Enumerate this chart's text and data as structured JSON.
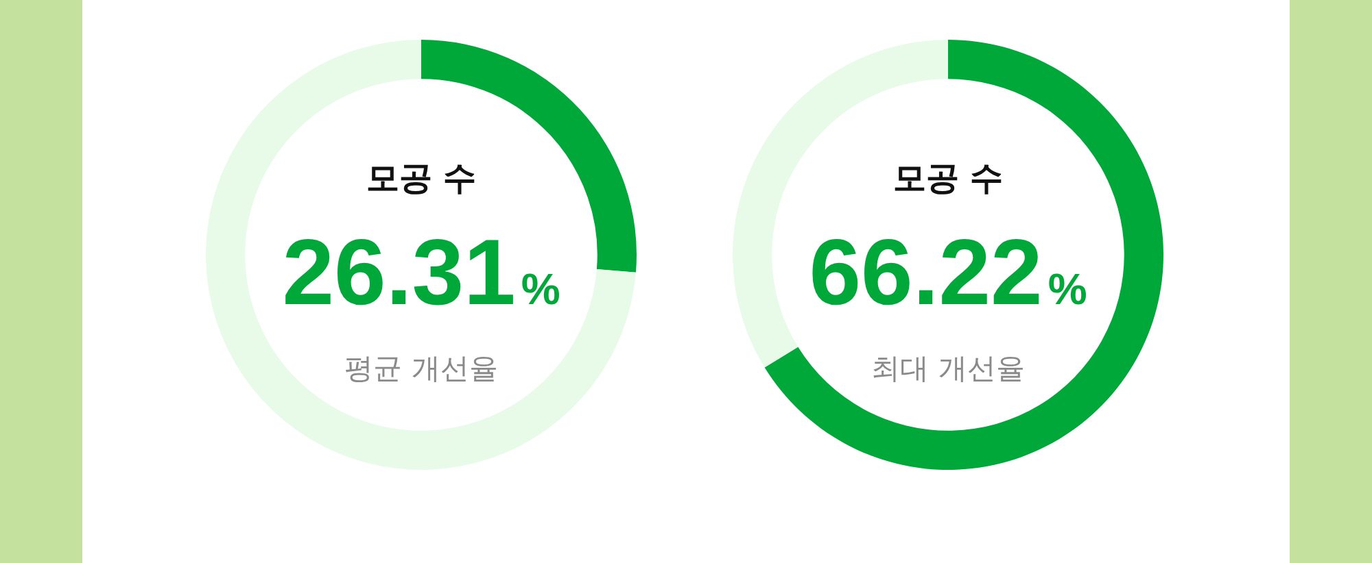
{
  "chart_data": [
    {
      "type": "donut",
      "title": "모공 수",
      "subtitle": "평균 개선율",
      "categories": [
        null,
        null
      ],
      "values": [
        26.31,
        73.69
      ],
      "colors": [
        "#00a83a",
        "#e8fbe9"
      ],
      "annotations": [
        "26.31%"
      ],
      "legend": false
    },
    {
      "type": "donut",
      "title": "모공 수",
      "subtitle": "최대 개선율",
      "categories": [
        null,
        null
      ],
      "values": [
        66.22,
        33.78
      ],
      "colors": [
        "#00a83a",
        "#e8fbe9"
      ],
      "annotations": [
        "66.22%"
      ],
      "legend": false
    }
  ]
}
